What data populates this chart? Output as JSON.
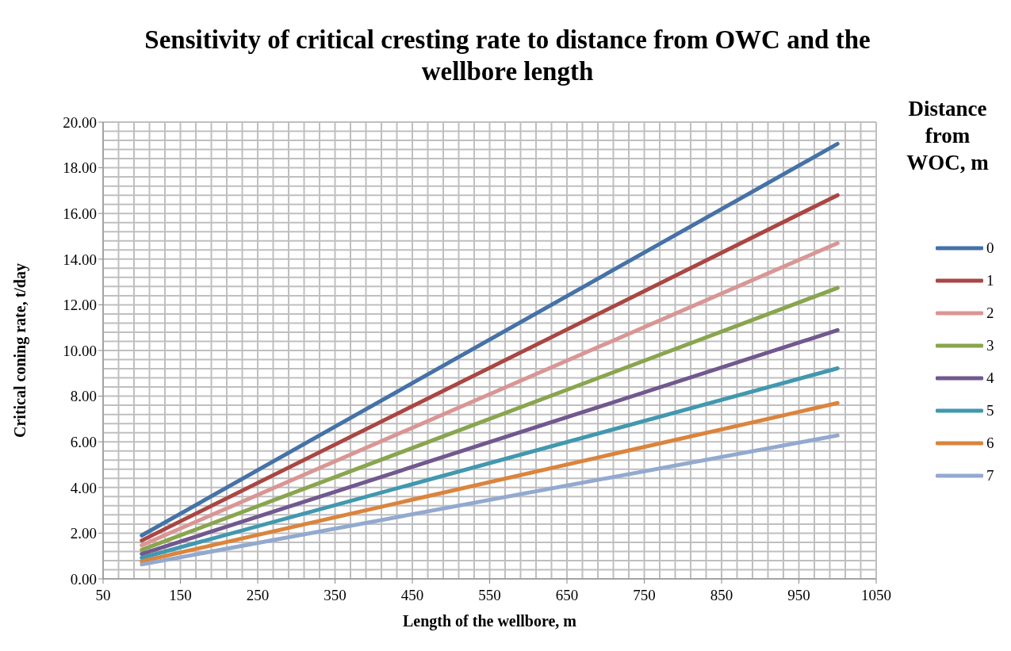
{
  "chart_data": {
    "type": "line",
    "title": "Sensitivity of critical cresting rate to distance from OWC and the wellbore length",
    "xlabel": "Length of the wellbore, m",
    "ylabel": "Critical coning rate, t/day",
    "legend_title": "Distance from WOC, m",
    "legend": "right",
    "grid": true,
    "marker": "none",
    "line_style": "solid",
    "x": [
      100,
      1000
    ],
    "xlim": [
      50,
      1050
    ],
    "xticks": [
      50,
      150,
      250,
      350,
      450,
      550,
      650,
      750,
      850,
      950,
      1050
    ],
    "ylim": [
      0,
      20
    ],
    "yticks": [
      {
        "value": 0,
        "label": "0.00"
      },
      {
        "value": 2,
        "label": "2.00"
      },
      {
        "value": 4,
        "label": "4.00"
      },
      {
        "value": 6,
        "label": "6.00"
      },
      {
        "value": 8,
        "label": "8.00"
      },
      {
        "value": 10,
        "label": "10.00"
      },
      {
        "value": 12,
        "label": "12.00"
      },
      {
        "value": 14,
        "label": "14.00"
      },
      {
        "value": 16,
        "label": "16.00"
      },
      {
        "value": 18,
        "label": "18.00"
      },
      {
        "value": 20,
        "label": "20.00"
      }
    ],
    "series": [
      {
        "name": "0",
        "color": "#4572a7",
        "values": [
          1.9,
          19.05
        ]
      },
      {
        "name": "1",
        "color": "#aa4643",
        "values": [
          1.68,
          16.8
        ]
      },
      {
        "name": "2",
        "color": "#d99694",
        "values": [
          1.47,
          14.7
        ]
      },
      {
        "name": "3",
        "color": "#89a54e",
        "values": [
          1.27,
          12.74
        ]
      },
      {
        "name": "4",
        "color": "#71588f",
        "values": [
          1.09,
          10.89
        ]
      },
      {
        "name": "5",
        "color": "#4198af",
        "values": [
          0.92,
          9.22
        ]
      },
      {
        "name": "6",
        "color": "#db843d",
        "values": [
          0.77,
          7.7
        ]
      },
      {
        "name": "7",
        "color": "#93a9cf",
        "values": [
          0.63,
          6.28
        ]
      }
    ]
  }
}
